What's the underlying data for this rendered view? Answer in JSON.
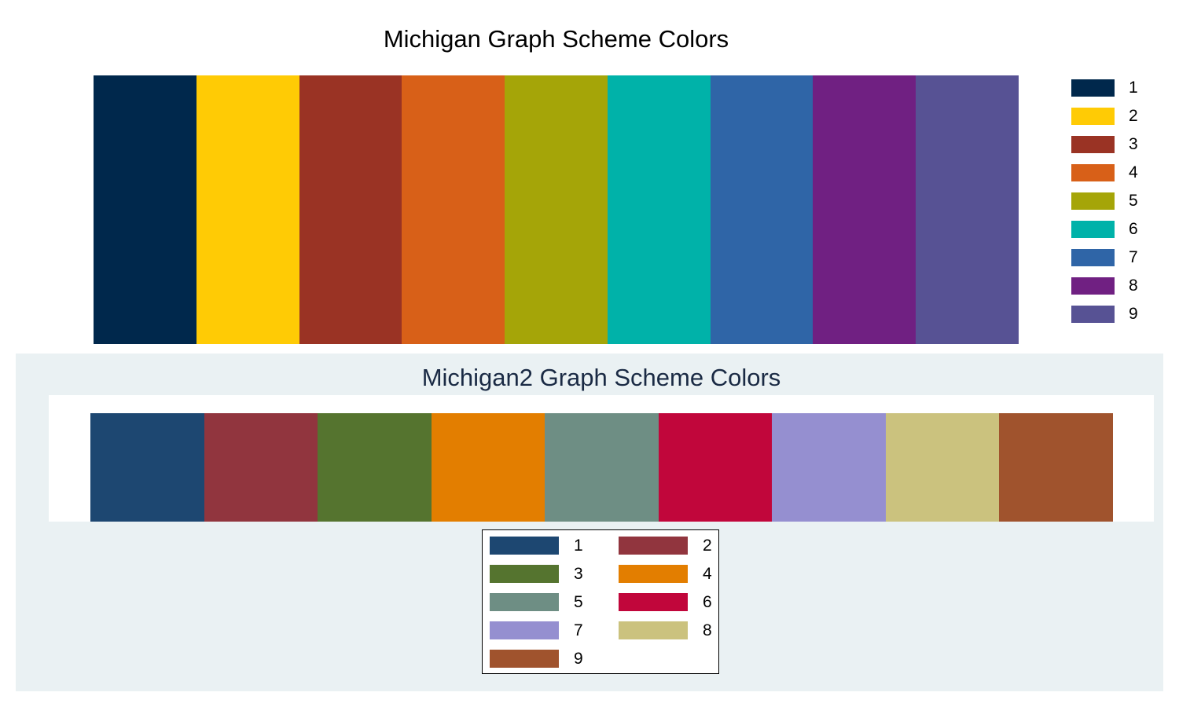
{
  "chart_data": [
    {
      "type": "bar",
      "title": "Michigan Graph Scheme Colors",
      "categories": [
        "1",
        "2",
        "3",
        "4",
        "5",
        "6",
        "7",
        "8",
        "9"
      ],
      "values": [
        1,
        1,
        1,
        1,
        1,
        1,
        1,
        1,
        1
      ],
      "colors": [
        "#00284c",
        "#ffcb05",
        "#9a3324",
        "#d86018",
        "#a5a508",
        "#00b2a9",
        "#2f65a7",
        "#702082",
        "#575294"
      ],
      "legend": {
        "position": "right",
        "entries": [
          "1",
          "2",
          "3",
          "4",
          "5",
          "6",
          "7",
          "8",
          "9"
        ]
      }
    },
    {
      "type": "bar",
      "title": "Michigan2 Graph Scheme Colors",
      "categories": [
        "1",
        "2",
        "3",
        "4",
        "5",
        "6",
        "7",
        "8",
        "9"
      ],
      "values": [
        1,
        1,
        1,
        1,
        1,
        1,
        1,
        1,
        1
      ],
      "colors": [
        "#1d4771",
        "#91353e",
        "#55742f",
        "#e37e00",
        "#6e8e84",
        "#c1063b",
        "#958fd0",
        "#cbc27e",
        "#a0532d"
      ],
      "legend": {
        "position": "bottom",
        "entries": [
          "1",
          "2",
          "3",
          "4",
          "5",
          "6",
          "7",
          "8",
          "9"
        ]
      }
    }
  ]
}
